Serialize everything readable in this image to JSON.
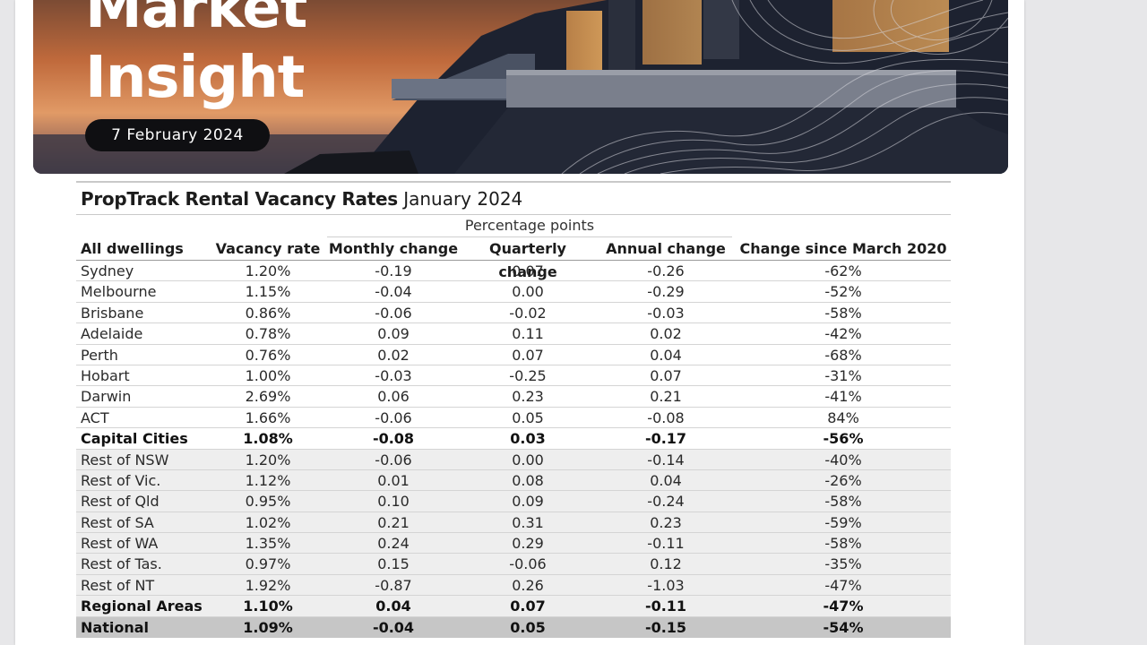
{
  "header": {
    "title_line1": "Market",
    "title_line2": "Insight",
    "date": "7 February 2024"
  },
  "table": {
    "title_bold": "PropTrack Rental Vacancy Rates",
    "title_period": " January 2024",
    "group_label": "Percentage points",
    "columns": [
      "All dwellings",
      "Vacancy rate",
      "Monthly change",
      "Quarterly change",
      "Annual change",
      "Change since March 2020"
    ],
    "rows": [
      {
        "cells": [
          "Sydney",
          "1.20%",
          "-0.19",
          "0.07",
          "-0.26",
          "-62%"
        ],
        "style": "normal"
      },
      {
        "cells": [
          "Melbourne",
          "1.15%",
          "-0.04",
          "0.00",
          "-0.29",
          "-52%"
        ],
        "style": "normal"
      },
      {
        "cells": [
          "Brisbane",
          "0.86%",
          "-0.06",
          "-0.02",
          "-0.03",
          "-58%"
        ],
        "style": "normal"
      },
      {
        "cells": [
          "Adelaide",
          "0.78%",
          "0.09",
          "0.11",
          "0.02",
          "-42%"
        ],
        "style": "normal"
      },
      {
        "cells": [
          "Perth",
          "0.76%",
          "0.02",
          "0.07",
          "0.04",
          "-68%"
        ],
        "style": "normal"
      },
      {
        "cells": [
          "Hobart",
          "1.00%",
          "-0.03",
          "-0.25",
          "0.07",
          "-31%"
        ],
        "style": "normal"
      },
      {
        "cells": [
          "Darwin",
          "2.69%",
          "0.06",
          "0.23",
          "0.21",
          "-41%"
        ],
        "style": "normal"
      },
      {
        "cells": [
          "ACT",
          "1.66%",
          "-0.06",
          "0.05",
          "-0.08",
          "84%"
        ],
        "style": "normal"
      },
      {
        "cells": [
          "Capital Cities",
          "1.08%",
          "-0.08",
          "0.03",
          "-0.17",
          "-56%"
        ],
        "style": "bold"
      },
      {
        "cells": [
          "Rest of NSW",
          "1.20%",
          "-0.06",
          "0.00",
          "-0.14",
          "-40%"
        ],
        "style": "shade"
      },
      {
        "cells": [
          "Rest of Vic.",
          "1.12%",
          "0.01",
          "0.08",
          "0.04",
          "-26%"
        ],
        "style": "shade"
      },
      {
        "cells": [
          "Rest of Qld",
          "0.95%",
          "0.10",
          "0.09",
          "-0.24",
          "-58%"
        ],
        "style": "shade"
      },
      {
        "cells": [
          "Rest of SA",
          "1.02%",
          "0.21",
          "0.31",
          "0.23",
          "-59%"
        ],
        "style": "shade"
      },
      {
        "cells": [
          "Rest of WA",
          "1.35%",
          "0.24",
          "0.29",
          "-0.11",
          "-58%"
        ],
        "style": "shade"
      },
      {
        "cells": [
          "Rest of Tas.",
          "0.97%",
          "0.15",
          "-0.06",
          "0.12",
          "-35%"
        ],
        "style": "shade"
      },
      {
        "cells": [
          "Rest of NT",
          "1.92%",
          "-0.87",
          "0.26",
          "-1.03",
          "-47%"
        ],
        "style": "shade"
      },
      {
        "cells": [
          "Regional Areas",
          "1.10%",
          "0.04",
          "0.07",
          "-0.11",
          "-47%"
        ],
        "style": "shade bold"
      },
      {
        "cells": [
          "National",
          "1.09%",
          "-0.04",
          "0.05",
          "-0.15",
          "-54%"
        ],
        "style": "national bold"
      }
    ]
  },
  "colors": {
    "date_pill_bg": "#0f0f12",
    "national_row_bg": "#c6c6c6",
    "regional_row_bg": "#eeeeee"
  }
}
